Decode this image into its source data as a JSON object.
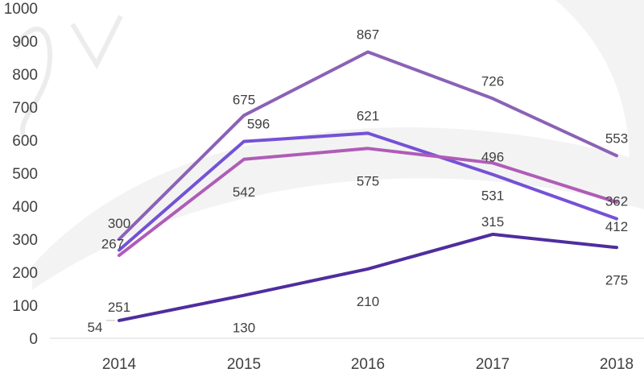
{
  "chart_data": {
    "type": "line",
    "title": "",
    "xlabel": "",
    "ylabel": "",
    "categories": [
      "2014",
      "2015",
      "2016",
      "2017",
      "2018"
    ],
    "ylim": [
      0,
      1000
    ],
    "yticks": [
      "0",
      "100",
      "200",
      "300",
      "400",
      "500",
      "600",
      "700",
      "800",
      "900",
      "1000"
    ],
    "grid": false,
    "legend": "none",
    "series": [
      {
        "color": "#8b62b5",
        "values": [
          300,
          675,
          867,
          726,
          553
        ]
      },
      {
        "color": "#7452d6",
        "values": [
          267,
          596,
          621,
          496,
          362
        ]
      },
      {
        "color": "#b05cb7",
        "values": [
          251,
          542,
          575,
          531,
          412
        ]
      },
      {
        "color": "#4f2d9e",
        "values": [
          54,
          130,
          210,
          315,
          275
        ]
      }
    ]
  }
}
